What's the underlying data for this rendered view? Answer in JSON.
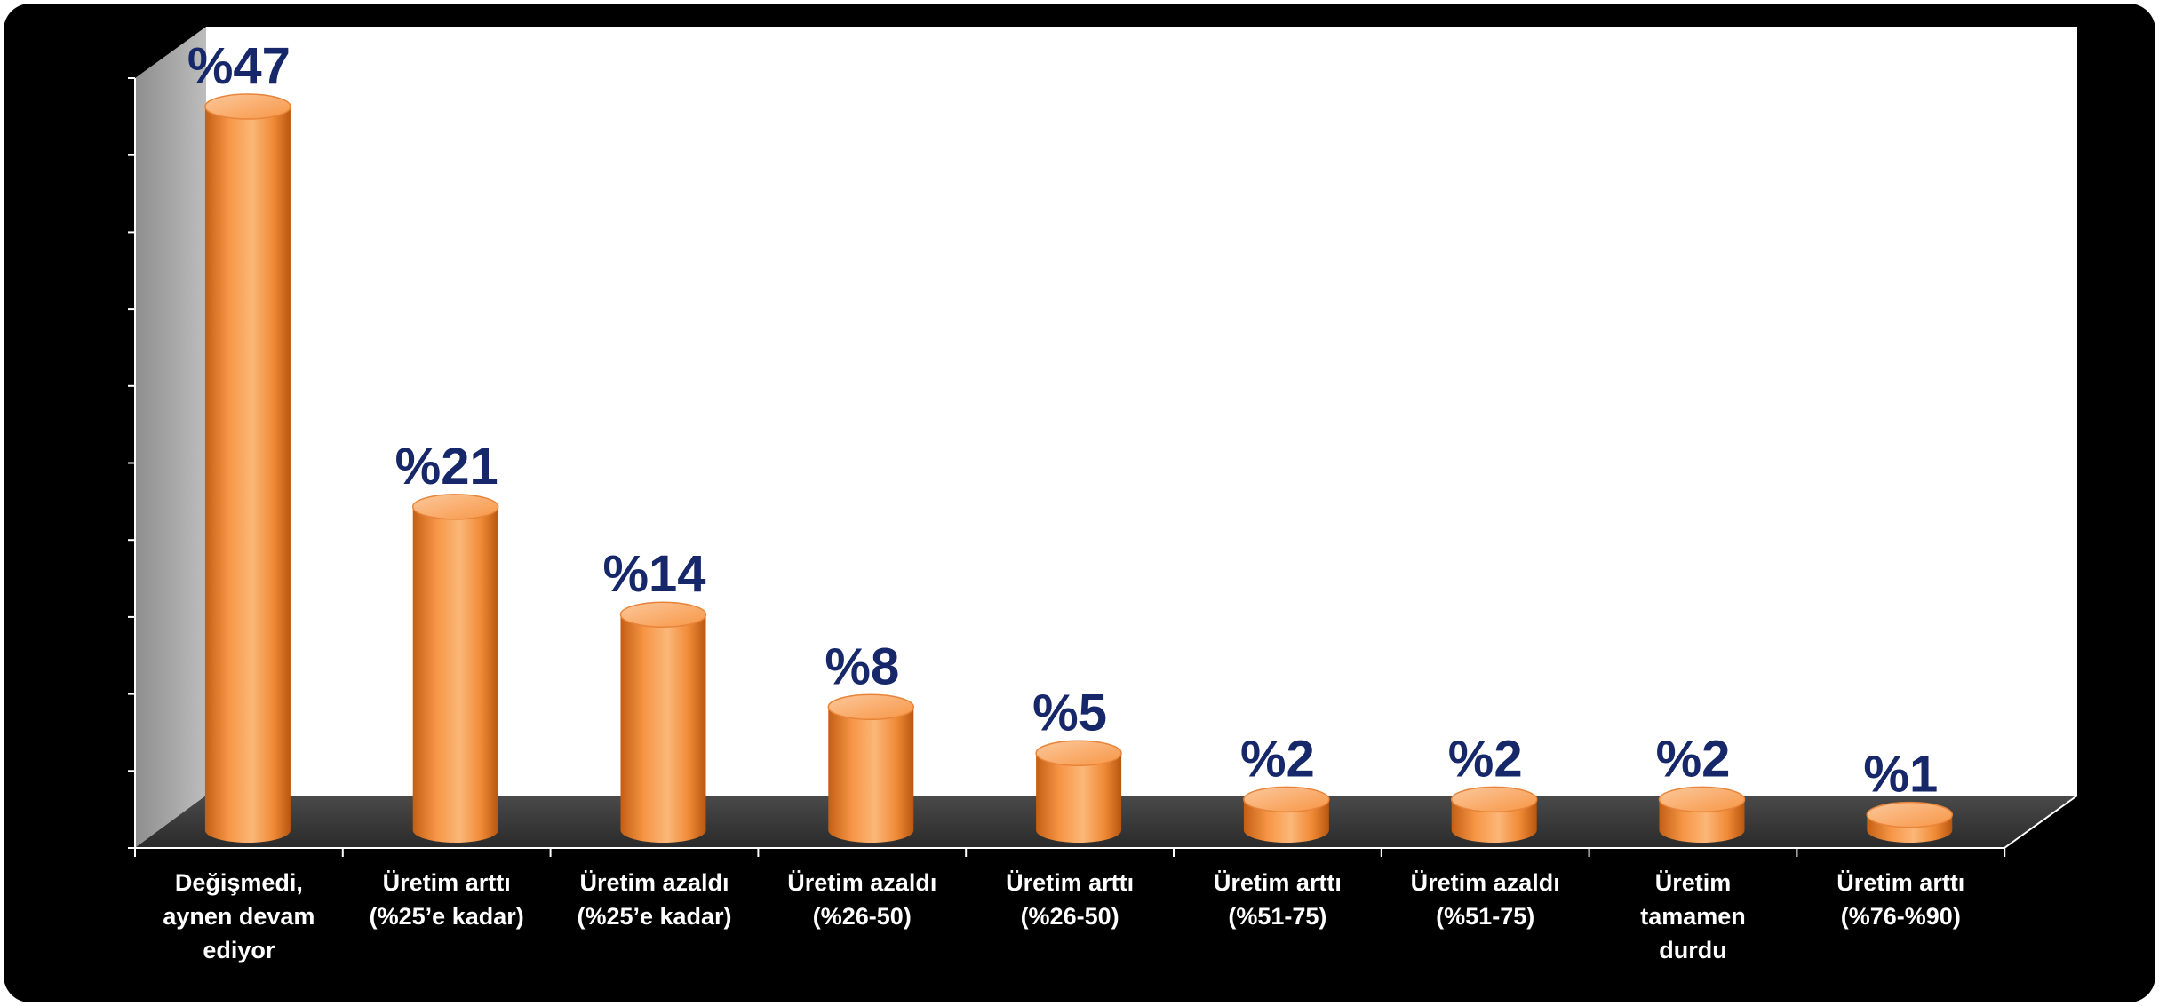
{
  "chart_data": {
    "type": "bar",
    "categories": [
      [
        "Değişmedi,",
        "aynen devam",
        "ediyor"
      ],
      [
        "Üretim arttı",
        "(%25’e kadar)"
      ],
      [
        "Üretim azaldı",
        "(%25’e kadar)"
      ],
      [
        "Üretim azaldı",
        "(%26-50)"
      ],
      [
        "Üretim arttı",
        "(%26-50)"
      ],
      [
        "Üretim arttı",
        "(%51-75)"
      ],
      [
        "Üretim azaldı",
        "(%51-75)"
      ],
      [
        "Üretim",
        "tamamen",
        "durdu"
      ],
      [
        "Üretim arttı",
        "(%76-%90)"
      ]
    ],
    "values": [
      47,
      21,
      14,
      8,
      5,
      2,
      2,
      2,
      1
    ],
    "data_labels": [
      "%47",
      "%21",
      "%14",
      "%8",
      "%5",
      "%2",
      "%2",
      "%2",
      "%1"
    ],
    "ylim": [
      0,
      50
    ],
    "yticks": [
      0,
      5,
      10,
      15,
      20,
      25,
      30,
      35,
      40,
      45,
      50
    ],
    "title": "",
    "xlabel": "",
    "ylabel": "",
    "grid": false,
    "legend": "none",
    "colors": {
      "frame": "#000000",
      "plot_back": "#ffffff",
      "side_wall": "#a6a6a6",
      "floor": "#3c3c3c",
      "bar": "#f79646",
      "bar_dark": "#c35f14",
      "bar_light": "#fbc08f",
      "data_label": "#16286a",
      "category_text": "#ffffff"
    }
  }
}
